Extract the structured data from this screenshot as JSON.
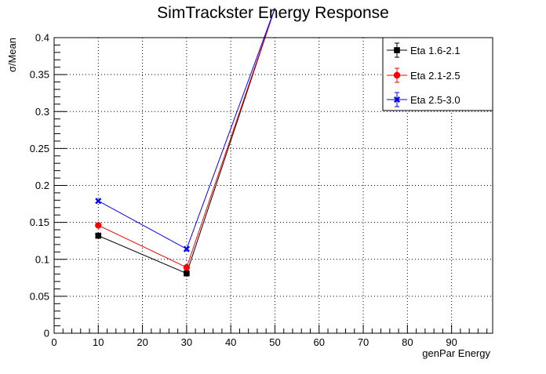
{
  "chart_data": {
    "type": "line",
    "title": "SimTrackster Energy Response",
    "xlabel": "genPar Energy",
    "ylabel": "σ/Mean",
    "xlim": [
      0,
      100
    ],
    "ylim": [
      0,
      0.4
    ],
    "grid": true,
    "legend_position": "top-right",
    "x_ticks": [
      "0",
      "10",
      "20",
      "30",
      "40",
      "50",
      "60",
      "70",
      "80",
      "90"
    ],
    "y_ticks": [
      "0",
      "0.05",
      "0.1",
      "0.15",
      "0.2",
      "0.25",
      "0.3",
      "0.35",
      "0.4"
    ],
    "series": [
      {
        "name": "Eta 1.6-2.1",
        "color": "#000000",
        "marker": "square",
        "x": [
          10,
          30,
          50
        ],
        "y": [
          0.132,
          0.081,
          0.44
        ]
      },
      {
        "name": "Eta 2.1-2.5",
        "color": "#ff0000",
        "marker": "circle",
        "x": [
          10,
          30,
          50
        ],
        "y": [
          0.146,
          0.089,
          0.44
        ]
      },
      {
        "name": "Eta 2.5-3.0",
        "color": "#0000ff",
        "marker": "x",
        "x": [
          10,
          30,
          50
        ],
        "y": [
          0.179,
          0.114,
          0.44
        ]
      }
    ]
  }
}
